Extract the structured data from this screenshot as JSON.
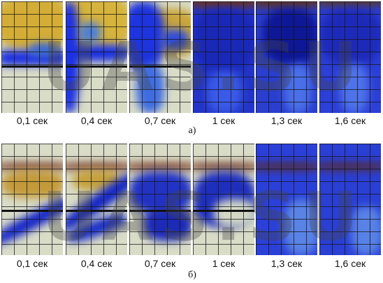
{
  "top_row": {
    "label": "а)",
    "captions": [
      "0,1 сек",
      "0,4 сек",
      "0,7 сек",
      "1 сек",
      "1,3 сек",
      "1,6 сек"
    ]
  },
  "bottom_row": {
    "label": "б)",
    "captions": [
      "0,1 сек",
      "0,4 сек",
      "0,7 сек",
      "1 сек",
      "1,3 сек",
      "1,6 сек"
    ]
  },
  "watermark": "UAS.SU",
  "colors": {
    "dye_blue": "#1a2bd6",
    "dark_blue": "#0a0f7a",
    "yellow_fluid": "#d7b13a",
    "rust_band": "#7a2a14",
    "background_fluid": "#d8dcc5"
  }
}
